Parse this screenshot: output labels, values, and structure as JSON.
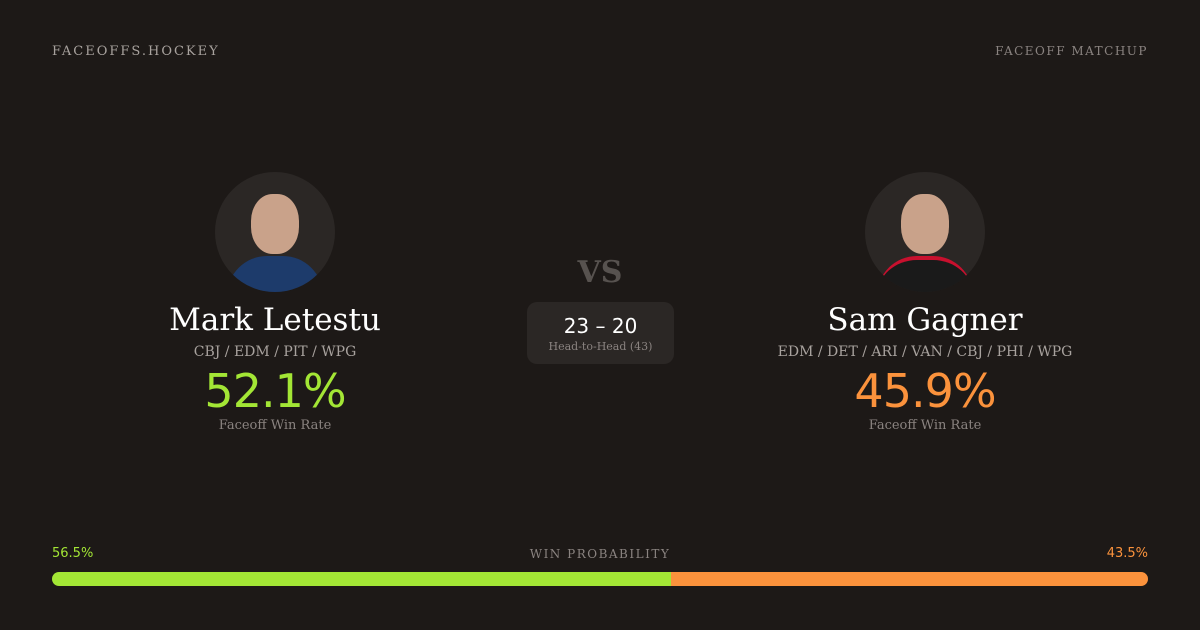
{
  "header": {
    "brand": "FACEOFFS.HOCKEY",
    "tag": "FACEOFF MATCHUP"
  },
  "players": [
    {
      "name": "Mark Letestu",
      "teams": "CBJ / EDM / PIT / WPG",
      "rate": "52.1%",
      "rate_label": "Faceoff Win Rate",
      "color": "#a3e635",
      "jersey": "#1d3b6b"
    },
    {
      "name": "Sam Gagner",
      "teams": "EDM / DET / ARI / VAN / CBJ / PHI / WPG",
      "rate": "45.9%",
      "rate_label": "Faceoff Win Rate",
      "color": "#fb923c",
      "jersey": "#1a1a1a"
    }
  ],
  "matchup": {
    "vs": "VS",
    "score": "23 – 20",
    "label": "Head-to-Head (43)"
  },
  "probability": {
    "label": "WIN PROBABILITY",
    "left": "56.5%",
    "right": "43.5%",
    "left_value": 56.5,
    "right_value": 43.5
  }
}
